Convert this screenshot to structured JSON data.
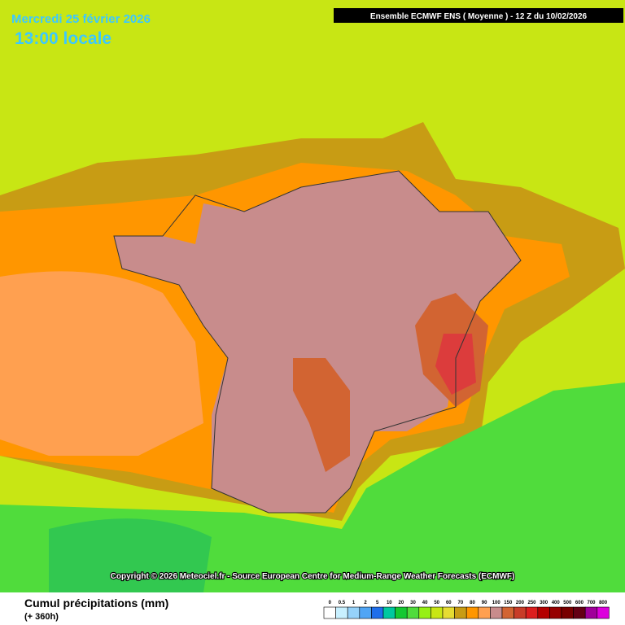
{
  "header": {
    "date": "Mercredi 25 février 2026",
    "time": "13:00 locale",
    "run": "Ensemble ECMWF ENS  ( Moyenne )  -  12 Z du 10/02/2026"
  },
  "footer": {
    "copyright": "Copyright © 2026 Meteociel.fr - Source European Centre for Medium-Range Weather Forecasts (ECMWF)",
    "variable": "Cumul précipitations (mm)",
    "range": "(+ 360h)"
  },
  "legend": {
    "levels": [
      0,
      0.5,
      1,
      2,
      5,
      10,
      20,
      30,
      40,
      50,
      60,
      70,
      80,
      90,
      100,
      150,
      200,
      250,
      300,
      400,
      500,
      600,
      700,
      800
    ],
    "colors": [
      "#ffffff",
      "#c8f0ff",
      "#96d2fa",
      "#50a5f5",
      "#1e6eeb",
      "#00c8a0",
      "#14c832",
      "#50dc3c",
      "#96f014",
      "#c8e614",
      "#e6dc32",
      "#c89c14",
      "#ff9600",
      "#ffa050",
      "#c88c8c",
      "#d26432",
      "#c83c28",
      "#dc1e1e",
      "#b40000",
      "#960000",
      "#780000",
      "#640014",
      "#a0009a",
      "#dc00dc"
    ]
  }
}
